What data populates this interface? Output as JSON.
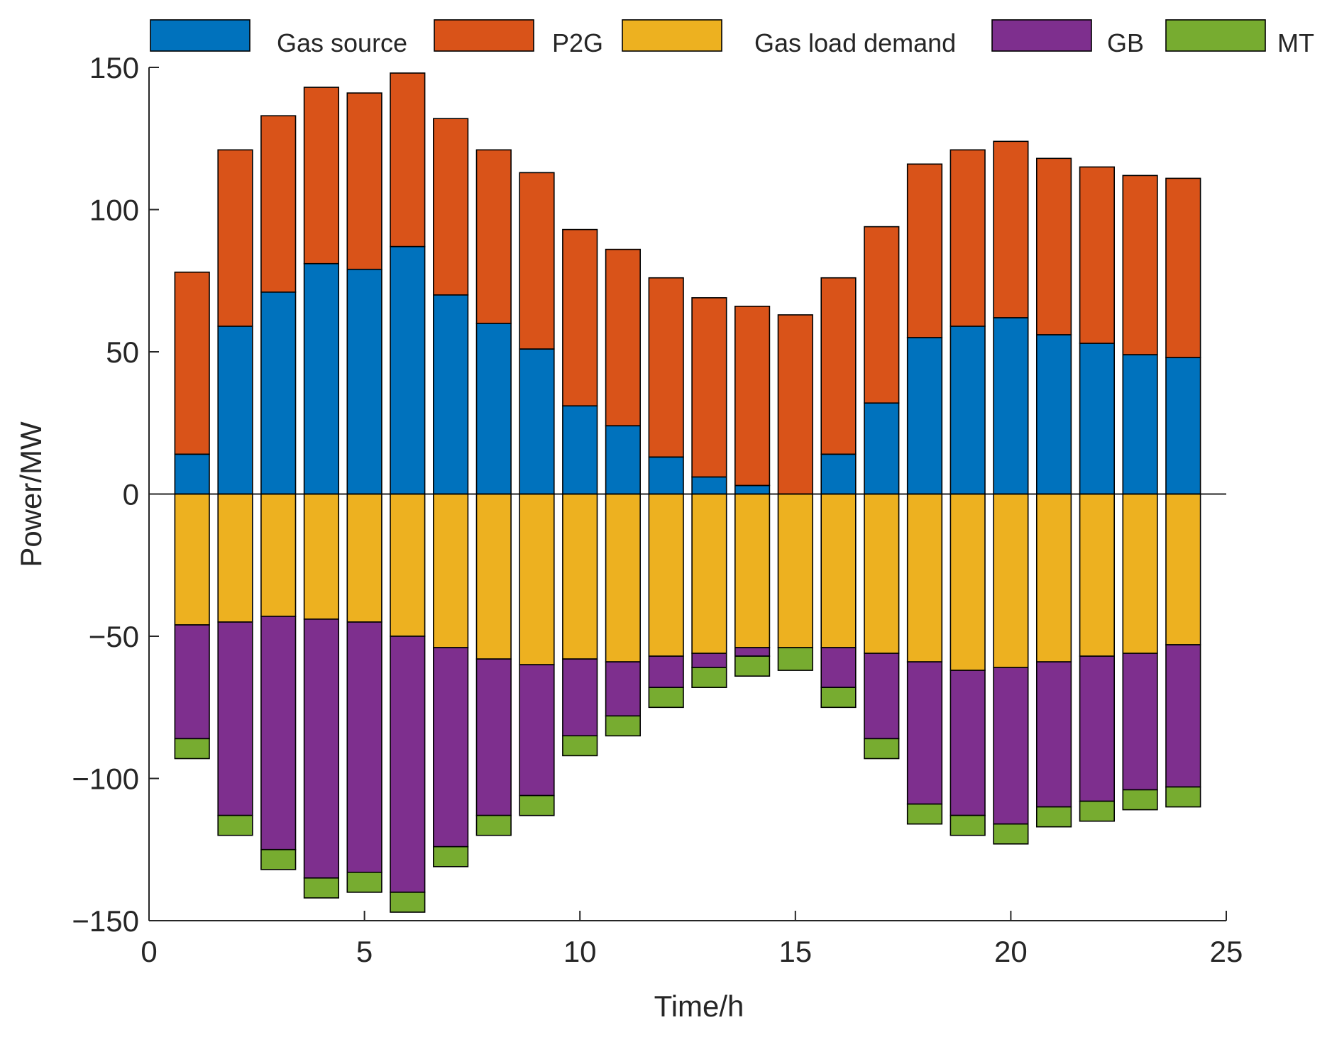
{
  "chart_data": {
    "type": "bar",
    "stacked": true,
    "diverging": true,
    "title": "",
    "xlabel": "Time/h",
    "ylabel": "Power/MW",
    "xlim": [
      0,
      25
    ],
    "ylim": [
      -150,
      150
    ],
    "xticks": [
      "0",
      "5",
      "10",
      "15",
      "20",
      "25"
    ],
    "yticks": [
      "150",
      "100",
      "50",
      "0",
      "−50",
      "−100",
      "−150"
    ],
    "grid": false,
    "legend_position": "top",
    "categories": [
      1,
      2,
      3,
      4,
      5,
      6,
      7,
      8,
      9,
      10,
      11,
      12,
      13,
      14,
      15,
      16,
      17,
      18,
      19,
      20,
      21,
      22,
      23,
      24
    ],
    "series": [
      {
        "name": "Gas source",
        "color": "#0072BD",
        "values": [
          14,
          59,
          71,
          81,
          79,
          87,
          70,
          60,
          51,
          31,
          24,
          13,
          6,
          3,
          0,
          14,
          32,
          55,
          59,
          62,
          56,
          53,
          49,
          48
        ]
      },
      {
        "name": "P2G",
        "color": "#D95319",
        "values": [
          64,
          62,
          62,
          62,
          62,
          61,
          62,
          61,
          62,
          62,
          62,
          63,
          63,
          63,
          63,
          62,
          62,
          61,
          62,
          62,
          62,
          62,
          63,
          63
        ]
      },
      {
        "name": "Gas load demand",
        "color": "#EDB120",
        "values": [
          -46,
          -45,
          -43,
          -44,
          -45,
          -50,
          -54,
          -58,
          -60,
          -58,
          -59,
          -57,
          -56,
          -54,
          -54,
          -54,
          -56,
          -59,
          -62,
          -61,
          -59,
          -57,
          -56,
          -53
        ]
      },
      {
        "name": "GB",
        "color": "#7E2F8E",
        "values": [
          -40,
          -68,
          -82,
          -91,
          -88,
          -90,
          -70,
          -55,
          -46,
          -27,
          -19,
          -11,
          -5,
          -3,
          0,
          -14,
          -30,
          -50,
          -51,
          -55,
          -51,
          -51,
          -48,
          -50
        ]
      },
      {
        "name": "MT",
        "color": "#77AC30",
        "values": [
          -7,
          -7,
          -7,
          -7,
          -7,
          -7,
          -7,
          -7,
          -7,
          -7,
          -7,
          -7,
          -7,
          -7,
          -8,
          -7,
          -7,
          -7,
          -7,
          -7,
          -7,
          -7,
          -7,
          -7
        ]
      }
    ]
  }
}
